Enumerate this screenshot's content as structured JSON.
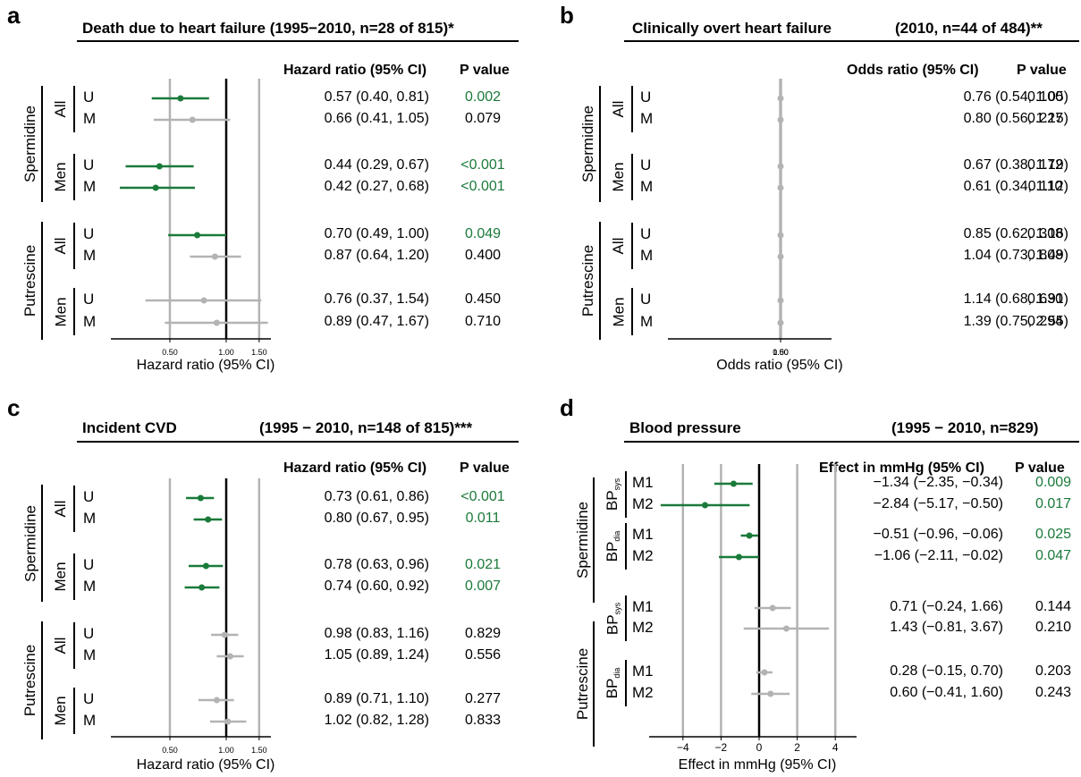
{
  "colors": {
    "significant": "#1a7a3a",
    "nonsignificant": "#b3b3b3",
    "ref_line": "#000000",
    "grid": "#b3b3b3"
  },
  "panels": [
    {
      "id": "a",
      "label": "a",
      "title": "Death due to heart failure (1995−2010, n=28 of 815)*",
      "subtitle": "",
      "est_header": "Hazard ratio (95% CI)",
      "p_header": "P value",
      "x_axis_title": "Hazard ratio (95% CI)",
      "groups": [
        {
          "outer": "Spermidine",
          "inner": [
            "All",
            "Men"
          ]
        },
        {
          "outer": "Putrescine",
          "inner": [
            "All",
            "Men"
          ]
        }
      ],
      "rows": [
        {
          "inner": "All",
          "label": "U",
          "est_text": "0.57 (0.40, 0.81)",
          "p": "0.002"
        },
        {
          "inner": "All",
          "label": "M",
          "est_text": "0.66 (0.41, 1.05)",
          "p": "0.079"
        },
        {
          "inner": "Men",
          "label": "U",
          "est_text": "0.44 (0.29, 0.67)",
          "p": "<0.001"
        },
        {
          "inner": "Men",
          "label": "M",
          "est_text": "0.42 (0.27, 0.68)",
          "p": "<0.001"
        },
        {
          "inner": "All",
          "label": "U",
          "est_text": "0.70 (0.49, 1.00)",
          "p": "0.049"
        },
        {
          "inner": "All",
          "label": "M",
          "est_text": "0.87 (0.64, 1.20)",
          "p": "0.400"
        },
        {
          "inner": "Men",
          "label": "U",
          "est_text": "0.76 (0.37, 1.54)",
          "p": "0.450"
        },
        {
          "inner": "Men",
          "label": "M",
          "est_text": "0.89 (0.47, 1.67)",
          "p": "0.710"
        }
      ]
    },
    {
      "id": "b",
      "label": "b",
      "title": "Clinically overt heart failure",
      "subtitle": "(2010, n=44 of 484)**",
      "est_header": "Odds ratio (95% CI)",
      "p_header": "P value",
      "x_axis_title": "Odds ratio (95% CI)",
      "groups": [
        {
          "outer": "Spermidine",
          "inner": [
            "All",
            "Men"
          ]
        },
        {
          "outer": "Putrescine",
          "inner": [
            "All",
            "Men"
          ]
        }
      ],
      "rows": [
        {
          "inner": "All",
          "label": "U",
          "est_text": "0.76 (0.54, 1.05)",
          "p": "0.100"
        },
        {
          "inner": "All",
          "label": "M",
          "est_text": "0.80 (0.56, 1.15)",
          "p": "0.227"
        },
        {
          "inner": "Men",
          "label": "U",
          "est_text": "0.67 (0.38, 1.19)",
          "p": "0.172"
        },
        {
          "inner": "Men",
          "label": "M",
          "est_text": "0.61 (0.34, 1.12)",
          "p": "0.110"
        },
        {
          "inner": "All",
          "label": "U",
          "est_text": "0.85 (0.62, 1.16)",
          "p": "0.308"
        },
        {
          "inner": "All",
          "label": "M",
          "est_text": "1.04 (0.73, 1.49)",
          "p": "0.808"
        },
        {
          "inner": "Men",
          "label": "U",
          "est_text": "1.14 (0.68, 1.91)",
          "p": "0.630"
        },
        {
          "inner": "Men",
          "label": "M",
          "est_text": "1.39 (0.75, 2.55)",
          "p": "0.294"
        }
      ]
    },
    {
      "id": "c",
      "label": "c",
      "title": "Incident CVD",
      "subtitle": "(1995  −  2010, n=148 of 815)***",
      "est_header": "Hazard ratio (95% CI)",
      "p_header": "P value",
      "x_axis_title": "Hazard ratio (95% CI)",
      "groups": [
        {
          "outer": "Spermidine",
          "inner": [
            "All",
            "Men"
          ]
        },
        {
          "outer": "Putrescine",
          "inner": [
            "All",
            "Men"
          ]
        }
      ],
      "rows": [
        {
          "inner": "All",
          "label": "U",
          "est_text": "0.73 (0.61, 0.86)",
          "p": "<0.001"
        },
        {
          "inner": "All",
          "label": "M",
          "est_text": "0.80 (0.67, 0.95)",
          "p": "0.011"
        },
        {
          "inner": "Men",
          "label": "U",
          "est_text": "0.78 (0.63, 0.96)",
          "p": "0.021"
        },
        {
          "inner": "Men",
          "label": "M",
          "est_text": "0.74 (0.60, 0.92)",
          "p": "0.007"
        },
        {
          "inner": "All",
          "label": "U",
          "est_text": "0.98 (0.83, 1.16)",
          "p": "0.829"
        },
        {
          "inner": "All",
          "label": "M",
          "est_text": "1.05 (0.89, 1.24)",
          "p": "0.556"
        },
        {
          "inner": "Men",
          "label": "U",
          "est_text": "0.89 (0.71, 1.10)",
          "p": "0.277"
        },
        {
          "inner": "Men",
          "label": "M",
          "est_text": "1.02 (0.82, 1.28)",
          "p": "0.833"
        }
      ]
    },
    {
      "id": "d",
      "label": "d",
      "title": "Blood pressure",
      "subtitle": "(1995  −  2010, n=829)",
      "est_header": "Effect in mmHg (95% CI)",
      "p_header": "P value",
      "x_axis_title": "Effect in mmHg (95% CI)",
      "groups": [
        {
          "outer": "Spermidine",
          "inner": [
            "BP",
            "BP"
          ],
          "inner_sub": [
            "sys",
            "dia"
          ]
        },
        {
          "outer": "Putrescine",
          "inner": [
            "BP",
            "BP"
          ],
          "inner_sub": [
            "sys",
            "dia"
          ]
        }
      ],
      "rows": [
        {
          "inner": "BPsys",
          "label": "M1",
          "est_text": "−1.34 (−2.35, −0.34)",
          "p": "0.009"
        },
        {
          "inner": "BPsys",
          "label": "M2",
          "est_text": "−2.84 (−5.17, −0.50)",
          "p": "0.017"
        },
        {
          "inner": "BPdia",
          "label": "M1",
          "est_text": "−0.51 (−0.96, −0.06)",
          "p": "0.025"
        },
        {
          "inner": "BPdia",
          "label": "M2",
          "est_text": "−1.06 (−2.11, −0.02)",
          "p": "0.047"
        },
        {
          "inner": "BPsys",
          "label": "M1",
          "est_text": "0.71 (−0.24, 1.66)",
          "p": "0.144"
        },
        {
          "inner": "BPsys",
          "label": "M2",
          "est_text": "1.43 (−0.81, 3.67)",
          "p": "0.210"
        },
        {
          "inner": "BPdia",
          "label": "M1",
          "est_text": "0.28 (−0.15, 0.70)",
          "p": "0.203"
        },
        {
          "inner": "BPdia",
          "label": "M2",
          "est_text": "0.60 (−0.41, 1.60)",
          "p": "0.243"
        }
      ]
    }
  ],
  "chart_data": [
    {
      "type": "scatter",
      "title": "Death due to heart failure (1995−2010, n=28 of 815)*",
      "xlabel": "Hazard ratio (95% CI)",
      "xscale": "log",
      "reference": 1.0,
      "xticks": [
        0.5,
        1.0,
        1.5
      ],
      "xtick_labels": [
        "0.50",
        "1.00",
        "1.50"
      ],
      "xlim": [
        0.25,
        2.0
      ],
      "grid": true,
      "series": [
        {
          "estimate": 0.57,
          "lower": 0.4,
          "upper": 0.81,
          "p": "0.002"
        },
        {
          "estimate": 0.66,
          "lower": 0.41,
          "upper": 1.05,
          "p": "0.079"
        },
        {
          "estimate": 0.44,
          "lower": 0.29,
          "upper": 0.67,
          "p": "<0.001"
        },
        {
          "estimate": 0.42,
          "lower": 0.27,
          "upper": 0.68,
          "p": "<0.001"
        },
        {
          "estimate": 0.7,
          "lower": 0.49,
          "upper": 1.0,
          "p": "0.049"
        },
        {
          "estimate": 0.87,
          "lower": 0.64,
          "upper": 1.2,
          "p": "0.400"
        },
        {
          "estimate": 0.76,
          "lower": 0.37,
          "upper": 1.54,
          "p": "0.450"
        },
        {
          "estimate": 0.89,
          "lower": 0.47,
          "upper": 1.67,
          "p": "0.710"
        }
      ],
      "significant": [
        true,
        false,
        true,
        true,
        true,
        false,
        false,
        false
      ]
    },
    {
      "type": "scatter",
      "title": "Clinically overt heart failure",
      "xlabel": "Odds ratio (95% CI)",
      "xscale": "log",
      "reference": 1.0,
      "xticks": [
        0.5,
        1.0,
        1.5
      ],
      "xtick_labels": [
        "0.50",
        "1.00",
        "1.50"
      ],
      "xlim": [
        0.25,
        3.0
      ],
      "grid": true,
      "series": [
        {
          "estimate": 0.76,
          "lower": 0.54,
          "upper": 1.05,
          "p": "0.100"
        },
        {
          "estimate": 0.8,
          "lower": 0.56,
          "upper": 1.15,
          "p": "0.227"
        },
        {
          "estimate": 0.67,
          "lower": 0.38,
          "upper": 1.19,
          "p": "0.172"
        },
        {
          "estimate": 0.61,
          "lower": 0.34,
          "upper": 1.12,
          "p": "0.110"
        },
        {
          "estimate": 0.85,
          "lower": 0.62,
          "upper": 1.16,
          "p": "0.308"
        },
        {
          "estimate": 1.04,
          "lower": 0.73,
          "upper": 1.49,
          "p": "0.808"
        },
        {
          "estimate": 1.14,
          "lower": 0.68,
          "upper": 1.91,
          "p": "0.630"
        },
        {
          "estimate": 1.39,
          "lower": 0.75,
          "upper": 2.55,
          "p": "0.294"
        }
      ],
      "significant": [
        false,
        false,
        false,
        false,
        false,
        false,
        false,
        false
      ]
    },
    {
      "type": "scatter",
      "title": "Incident CVD",
      "xlabel": "Hazard ratio (95% CI)",
      "xscale": "log",
      "reference": 1.0,
      "xticks": [
        0.5,
        1.0,
        1.5
      ],
      "xtick_labels": [
        "0.50",
        "1.00",
        "1.50"
      ],
      "xlim": [
        0.25,
        2.0
      ],
      "grid": true,
      "series": [
        {
          "estimate": 0.73,
          "lower": 0.61,
          "upper": 0.86,
          "p": "<0.001"
        },
        {
          "estimate": 0.8,
          "lower": 0.67,
          "upper": 0.95,
          "p": "0.011"
        },
        {
          "estimate": 0.78,
          "lower": 0.63,
          "upper": 0.96,
          "p": "0.021"
        },
        {
          "estimate": 0.74,
          "lower": 0.6,
          "upper": 0.92,
          "p": "0.007"
        },
        {
          "estimate": 0.98,
          "lower": 0.83,
          "upper": 1.16,
          "p": "0.829"
        },
        {
          "estimate": 1.05,
          "lower": 0.89,
          "upper": 1.24,
          "p": "0.556"
        },
        {
          "estimate": 0.89,
          "lower": 0.71,
          "upper": 1.1,
          "p": "0.277"
        },
        {
          "estimate": 1.02,
          "lower": 0.82,
          "upper": 1.28,
          "p": "0.833"
        }
      ],
      "significant": [
        true,
        true,
        true,
        true,
        false,
        false,
        false,
        false
      ]
    },
    {
      "type": "scatter",
      "title": "Blood pressure",
      "xlabel": "Effect in mmHg (95% CI)",
      "xscale": "linear",
      "reference": 0,
      "xticks": [
        -4,
        -2,
        0,
        2,
        4
      ],
      "xtick_labels": [
        "−4",
        "−2",
        "0",
        "2",
        "4"
      ],
      "xlim": [
        -5.2,
        5
      ],
      "grid": true,
      "series": [
        {
          "estimate": -1.34,
          "lower": -2.35,
          "upper": -0.34,
          "p": "0.009"
        },
        {
          "estimate": -2.84,
          "lower": -5.17,
          "upper": -0.5,
          "p": "0.017"
        },
        {
          "estimate": -0.51,
          "lower": -0.96,
          "upper": -0.06,
          "p": "0.025"
        },
        {
          "estimate": -1.06,
          "lower": -2.11,
          "upper": -0.02,
          "p": "0.047"
        },
        {
          "estimate": 0.71,
          "lower": -0.24,
          "upper": 1.66,
          "p": "0.144"
        },
        {
          "estimate": 1.43,
          "lower": -0.81,
          "upper": 3.67,
          "p": "0.210"
        },
        {
          "estimate": 0.28,
          "lower": -0.15,
          "upper": 0.7,
          "p": "0.203"
        },
        {
          "estimate": 0.6,
          "lower": -0.41,
          "upper": 1.6,
          "p": "0.243"
        }
      ],
      "significant": [
        true,
        true,
        true,
        true,
        false,
        false,
        false,
        false
      ]
    }
  ]
}
